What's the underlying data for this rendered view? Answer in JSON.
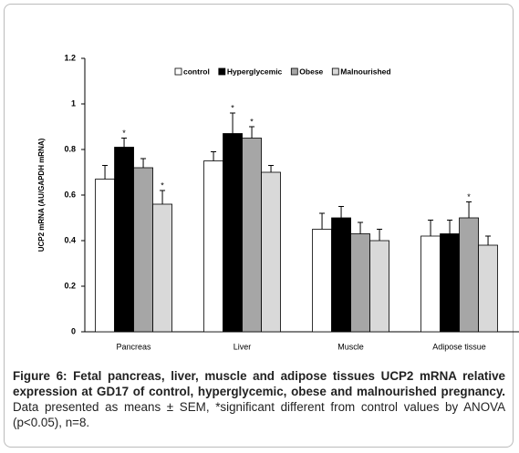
{
  "chart_data": {
    "type": "bar",
    "y_label": "UCP2 mRNA (AU/GAPDH mRNA)",
    "categories": [
      "Pancreas",
      "Liver",
      "Muscle",
      "Adipose tissue"
    ],
    "series": [
      {
        "name": "control",
        "color": "#ffffff",
        "values": [
          0.67,
          0.75,
          0.45,
          0.42
        ],
        "errors": [
          0.06,
          0.04,
          0.07,
          0.07
        ],
        "significance": [
          null,
          null,
          null,
          null
        ]
      },
      {
        "name": "Hyperglycemic",
        "color": "#000000",
        "values": [
          0.81,
          0.87,
          0.5,
          0.43
        ],
        "errors": [
          0.04,
          0.09,
          0.05,
          0.06
        ],
        "significance": [
          "*",
          "*",
          null,
          null
        ]
      },
      {
        "name": "Obese",
        "color": "#a6a6a6",
        "values": [
          0.72,
          0.85,
          0.43,
          0.5
        ],
        "errors": [
          0.04,
          0.05,
          0.05,
          0.07
        ],
        "significance": [
          null,
          "*",
          null,
          "*"
        ]
      },
      {
        "name": "Malnourished",
        "color": "#d9d9d9",
        "values": [
          0.56,
          0.7,
          0.4,
          0.38
        ],
        "errors": [
          0.06,
          0.03,
          0.05,
          0.04
        ],
        "significance": [
          "*",
          null,
          null,
          null
        ]
      }
    ],
    "ylim": [
      0,
      1.2
    ],
    "yticks": [
      0,
      0.2,
      0.4,
      0.6,
      0.8,
      1,
      1.2
    ],
    "grid": false,
    "legend": "top"
  },
  "caption": {
    "bold": "Figure 6: Fetal pancreas, liver, muscle and adipose tissues UCP2 mRNA relative expression at GD17 of control, hyperglycemic, obese and malnourished pregnancy.",
    "text": "Data presented as means ± SEM, *significant different from control values by ANOVA (p<0.05), n=8."
  }
}
